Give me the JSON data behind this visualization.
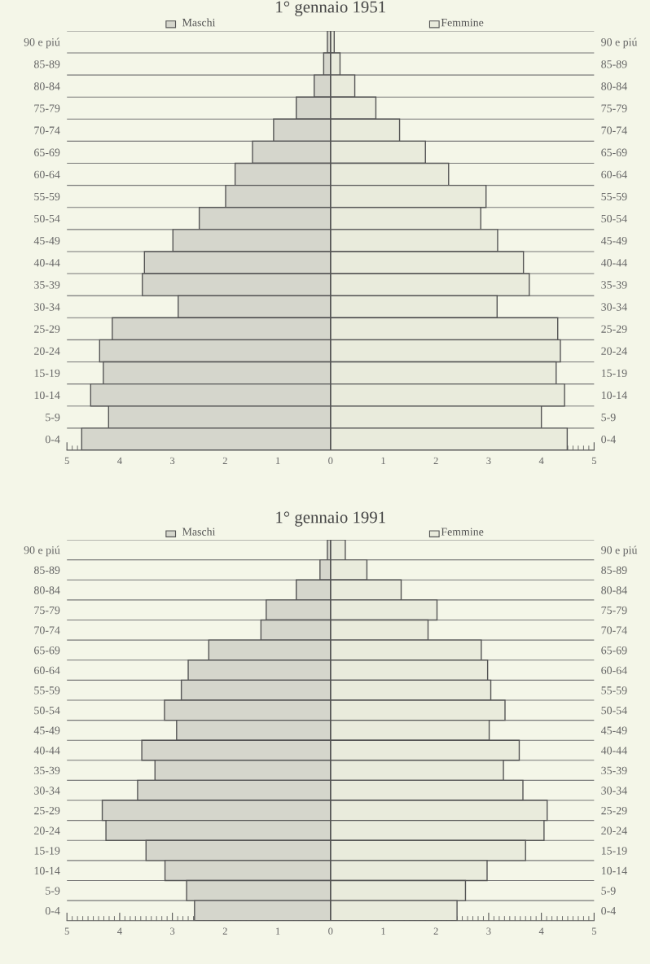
{
  "chart_data": [
    {
      "type": "bar",
      "orientation": "horizontal",
      "stacked": true,
      "title": "1° gennaio 1951",
      "categories": [
        "90 e piú",
        "85-89",
        "80-84",
        "75-79",
        "70-74",
        "65-69",
        "60-64",
        "55-59",
        "50-54",
        "45-49",
        "40-44",
        "35-39",
        "30-34",
        "25-29",
        "20-24",
        "15-19",
        "10-14",
        "5-9",
        "0-4"
      ],
      "series": [
        {
          "name": "Maschi",
          "color": "#d5d6cc",
          "values": [
            -0.06,
            -0.13,
            -0.31,
            -0.65,
            -1.08,
            -1.48,
            -1.81,
            -1.99,
            -2.49,
            -2.99,
            -3.53,
            -3.57,
            -2.89,
            -4.14,
            -4.38,
            -4.31,
            -4.55,
            -4.21,
            -4.72
          ]
        },
        {
          "name": "Femmine",
          "color": "#e9ebdc",
          "values": [
            0.07,
            0.18,
            0.46,
            0.86,
            1.31,
            1.8,
            2.24,
            2.95,
            2.85,
            3.17,
            3.66,
            3.77,
            3.16,
            4.31,
            4.36,
            4.28,
            4.44,
            4.0,
            4.49
          ]
        }
      ],
      "xlim": [
        -5,
        5
      ],
      "xticks": [
        {
          "value": -5,
          "label": "5"
        },
        {
          "value": -4,
          "label": "4"
        },
        {
          "value": -3,
          "label": "3"
        },
        {
          "value": -2,
          "label": "2"
        },
        {
          "value": -1,
          "label": "1"
        },
        0,
        1,
        2,
        3,
        4,
        5
      ],
      "grid": "y",
      "legend": "top"
    },
    {
      "type": "bar",
      "orientation": "horizontal",
      "stacked": true,
      "title": "1° gennaio 1991",
      "categories": [
        "90 e piú",
        "85-89",
        "80-84",
        "75-79",
        "70-74",
        "65-69",
        "60-64",
        "55-59",
        "50-54",
        "45-49",
        "40-44",
        "35-39",
        "30-34",
        "25-29",
        "20-24",
        "15-19",
        "10-14",
        "5-9",
        "0-4"
      ],
      "series": [
        {
          "name": "Maschi",
          "color": "#d5d6cc",
          "values": [
            -0.06,
            -0.2,
            -0.65,
            -1.22,
            -1.32,
            -2.31,
            -2.7,
            -2.83,
            -3.15,
            -2.92,
            -3.58,
            -3.33,
            -3.66,
            -4.33,
            -4.26,
            -3.5,
            -3.14,
            -2.73,
            -2.58
          ]
        },
        {
          "name": "Femmine",
          "color": "#e9ebdc",
          "values": [
            0.28,
            0.69,
            1.34,
            2.02,
            1.85,
            2.86,
            2.98,
            3.04,
            3.31,
            3.01,
            3.58,
            3.28,
            3.65,
            4.11,
            4.05,
            3.7,
            2.97,
            2.56,
            2.4
          ]
        }
      ],
      "xlim": [
        -5,
        5
      ],
      "xticks": [
        {
          "value": -5,
          "label": "5"
        },
        {
          "value": -4,
          "label": "4"
        },
        {
          "value": -3,
          "label": "3"
        },
        {
          "value": -2,
          "label": "2"
        },
        {
          "value": -1,
          "label": "1"
        },
        0,
        1,
        2,
        3,
        4,
        5
      ],
      "grid": "y",
      "legend": "top"
    }
  ]
}
